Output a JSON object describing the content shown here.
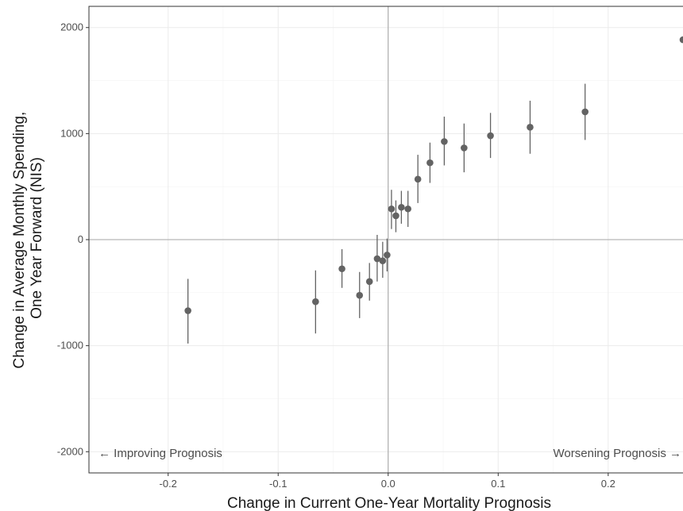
{
  "chart_data": {
    "type": "scatter",
    "title": "",
    "xlabel": "Change in Current One-Year Mortality Prognosis",
    "ylabel_line1": "Change in Average Monthly Spending,",
    "ylabel_line2": "One Year Forward (NIS)",
    "xlim": [
      -0.272,
      0.268
    ],
    "ylim": [
      -2200,
      2200
    ],
    "x_ticks": [
      -0.2,
      -0.1,
      0.0,
      0.1,
      0.2
    ],
    "x_tick_labels": [
      "-0.2",
      "-0.1",
      "0.0",
      "0.1",
      "0.2"
    ],
    "y_ticks": [
      -2000,
      -1000,
      0,
      1000,
      2000
    ],
    "y_tick_labels": [
      "-2000",
      "-1000",
      "0",
      "1000",
      "2000"
    ],
    "grid": true,
    "reference_lines": {
      "x": 0,
      "y": 0
    },
    "annotations": {
      "left": "← Improving Prognosis",
      "right": "Worsening Prognosis →"
    },
    "colors": {
      "point": "#636363",
      "errorbar": "#636363",
      "reference": "#a6a6a6",
      "grid": "#ebebeb",
      "frame": "#333333"
    },
    "series": [
      {
        "points": [
          {
            "x": -0.182,
            "y": -670,
            "lo": -980,
            "hi": -370
          },
          {
            "x": -0.066,
            "y": -585,
            "lo": -885,
            "hi": -290
          },
          {
            "x": -0.042,
            "y": -275,
            "lo": -455,
            "hi": -90
          },
          {
            "x": -0.026,
            "y": -525,
            "lo": -740,
            "hi": -305
          },
          {
            "x": -0.017,
            "y": -395,
            "lo": -575,
            "hi": -220
          },
          {
            "x": -0.01,
            "y": -180,
            "lo": -395,
            "hi": 45
          },
          {
            "x": -0.005,
            "y": -200,
            "lo": -360,
            "hi": -20
          },
          {
            "x": -0.001,
            "y": -145,
            "lo": -300,
            "hi": 10
          },
          {
            "x": 0.003,
            "y": 290,
            "lo": 100,
            "hi": 470
          },
          {
            "x": 0.007,
            "y": 225,
            "lo": 70,
            "hi": 370
          },
          {
            "x": 0.012,
            "y": 305,
            "lo": 150,
            "hi": 460
          },
          {
            "x": 0.018,
            "y": 290,
            "lo": 120,
            "hi": 460
          },
          {
            "x": 0.027,
            "y": 570,
            "lo": 345,
            "hi": 800
          },
          {
            "x": 0.038,
            "y": 725,
            "lo": 535,
            "hi": 915
          },
          {
            "x": 0.051,
            "y": 925,
            "lo": 700,
            "hi": 1160
          },
          {
            "x": 0.069,
            "y": 865,
            "lo": 635,
            "hi": 1095
          },
          {
            "x": 0.093,
            "y": 980,
            "lo": 770,
            "hi": 1195
          },
          {
            "x": 0.129,
            "y": 1060,
            "lo": 810,
            "hi": 1310
          },
          {
            "x": 0.179,
            "y": 1205,
            "lo": 940,
            "hi": 1470
          },
          {
            "x": 0.268,
            "y": 1885,
            "lo": 1885,
            "hi": 1885
          }
        ]
      }
    ]
  }
}
